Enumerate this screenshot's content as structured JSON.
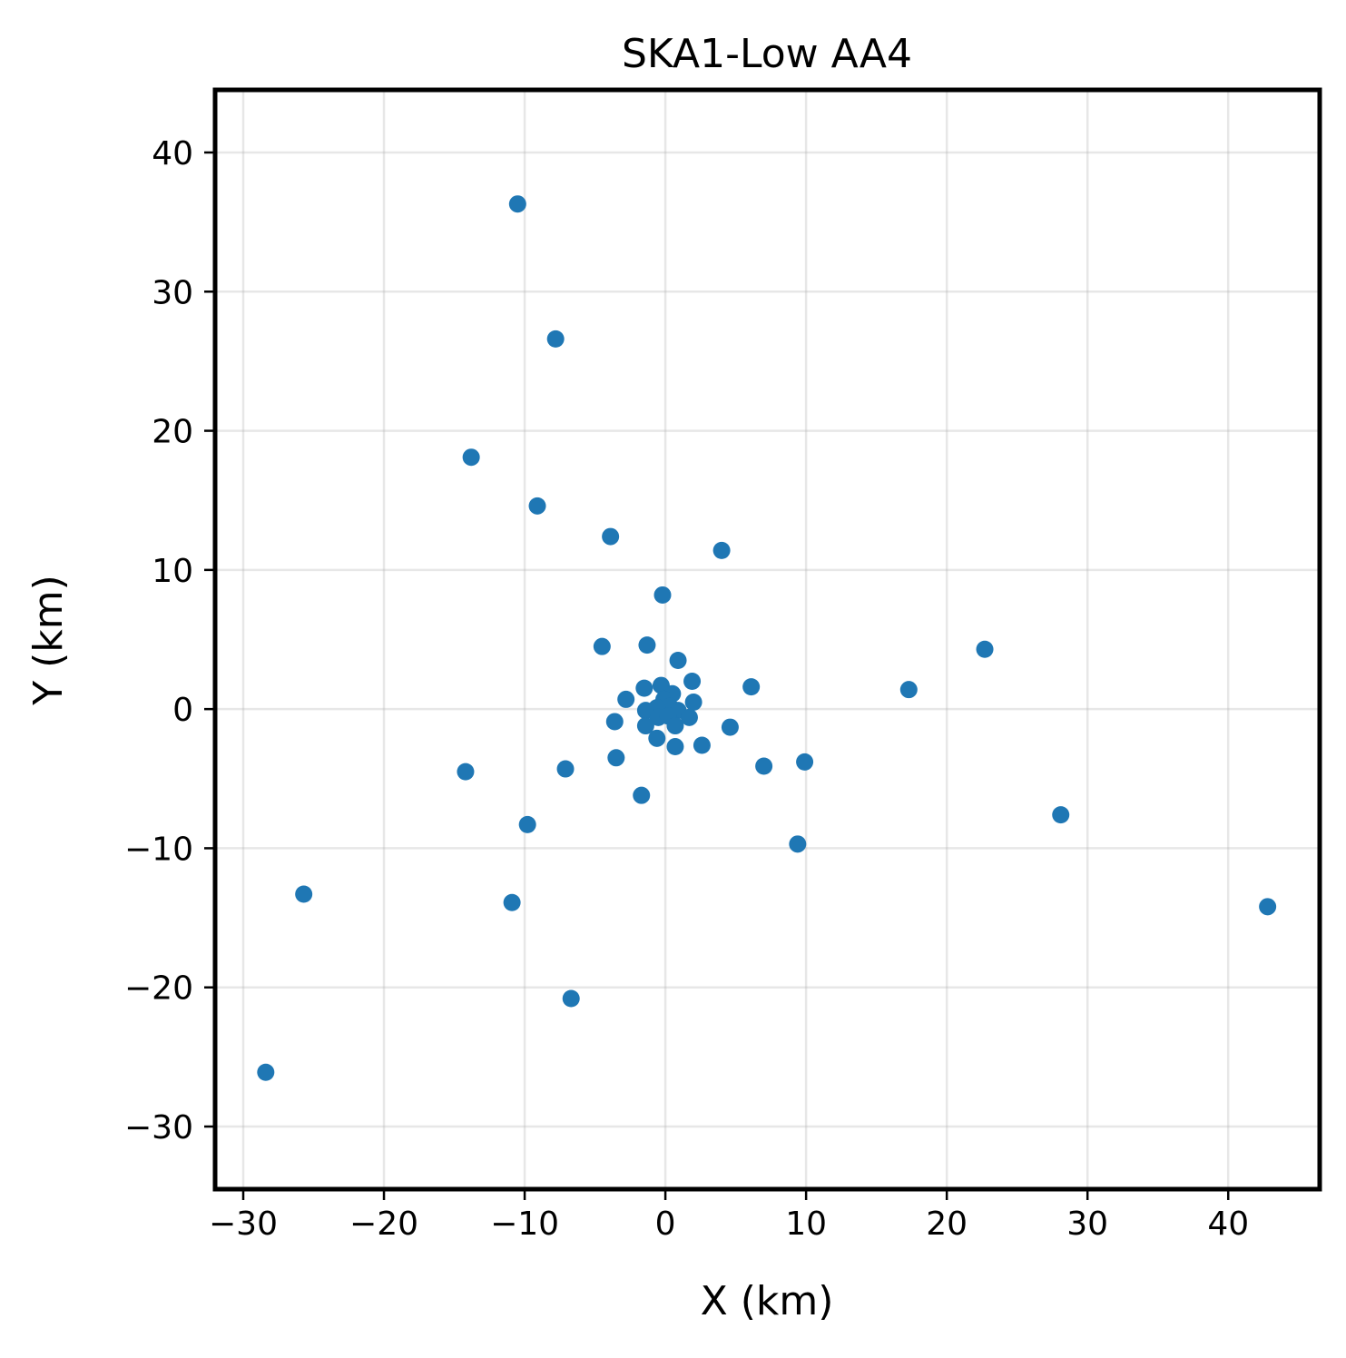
{
  "chart_data": {
    "type": "scatter",
    "title": "SKA1-Low AA4",
    "xlabel": "X (km)",
    "ylabel": "Y (km)",
    "xlim": [
      -32,
      46.5
    ],
    "ylim": [
      -34.5,
      44.5
    ],
    "xticks": [
      -30,
      -20,
      -10,
      0,
      10,
      20,
      30,
      40
    ],
    "yticks": [
      -30,
      -20,
      -10,
      0,
      10,
      20,
      30,
      40
    ],
    "xtick_labels": [
      "−30",
      "−20",
      "−10",
      "0",
      "10",
      "20",
      "30",
      "40"
    ],
    "ytick_labels": [
      "−30",
      "−20",
      "−10",
      "0",
      "10",
      "20",
      "30",
      "40"
    ],
    "grid": true,
    "marker_color": "#1f77b4",
    "points": [
      [
        -10.5,
        36.3
      ],
      [
        -7.8,
        26.6
      ],
      [
        -13.8,
        18.1
      ],
      [
        -9.1,
        14.6
      ],
      [
        -3.9,
        12.4
      ],
      [
        4.0,
        11.4
      ],
      [
        -0.2,
        8.2
      ],
      [
        -4.5,
        4.5
      ],
      [
        -1.3,
        4.6
      ],
      [
        0.9,
        3.5
      ],
      [
        22.7,
        4.3
      ],
      [
        17.3,
        1.4
      ],
      [
        6.1,
        1.6
      ],
      [
        1.9,
        2.0
      ],
      [
        -0.3,
        1.7
      ],
      [
        -1.5,
        1.5
      ],
      [
        -2.8,
        0.7
      ],
      [
        0.5,
        1.1
      ],
      [
        2.0,
        0.5
      ],
      [
        -0.1,
        0.7
      ],
      [
        0.3,
        0.2
      ],
      [
        -0.6,
        0.1
      ],
      [
        -1.4,
        -0.1
      ],
      [
        0.9,
        -0.1
      ],
      [
        -0.5,
        -0.6
      ],
      [
        1.7,
        -0.6
      ],
      [
        0.2,
        -0.5
      ],
      [
        -3.6,
        -0.9
      ],
      [
        -1.4,
        -1.2
      ],
      [
        0.7,
        -1.2
      ],
      [
        4.6,
        -1.3
      ],
      [
        -0.6,
        -2.1
      ],
      [
        0.7,
        -2.7
      ],
      [
        2.6,
        -2.6
      ],
      [
        -3.5,
        -3.5
      ],
      [
        7.0,
        -4.1
      ],
      [
        9.9,
        -3.8
      ],
      [
        -14.2,
        -4.5
      ],
      [
        -7.1,
        -4.3
      ],
      [
        -1.7,
        -6.2
      ],
      [
        -9.8,
        -8.3
      ],
      [
        9.4,
        -9.7
      ],
      [
        28.1,
        -7.6
      ],
      [
        -25.7,
        -13.3
      ],
      [
        -10.9,
        -13.9
      ],
      [
        42.8,
        -14.2
      ],
      [
        -6.7,
        -20.8
      ],
      [
        -28.4,
        -26.1
      ]
    ]
  }
}
